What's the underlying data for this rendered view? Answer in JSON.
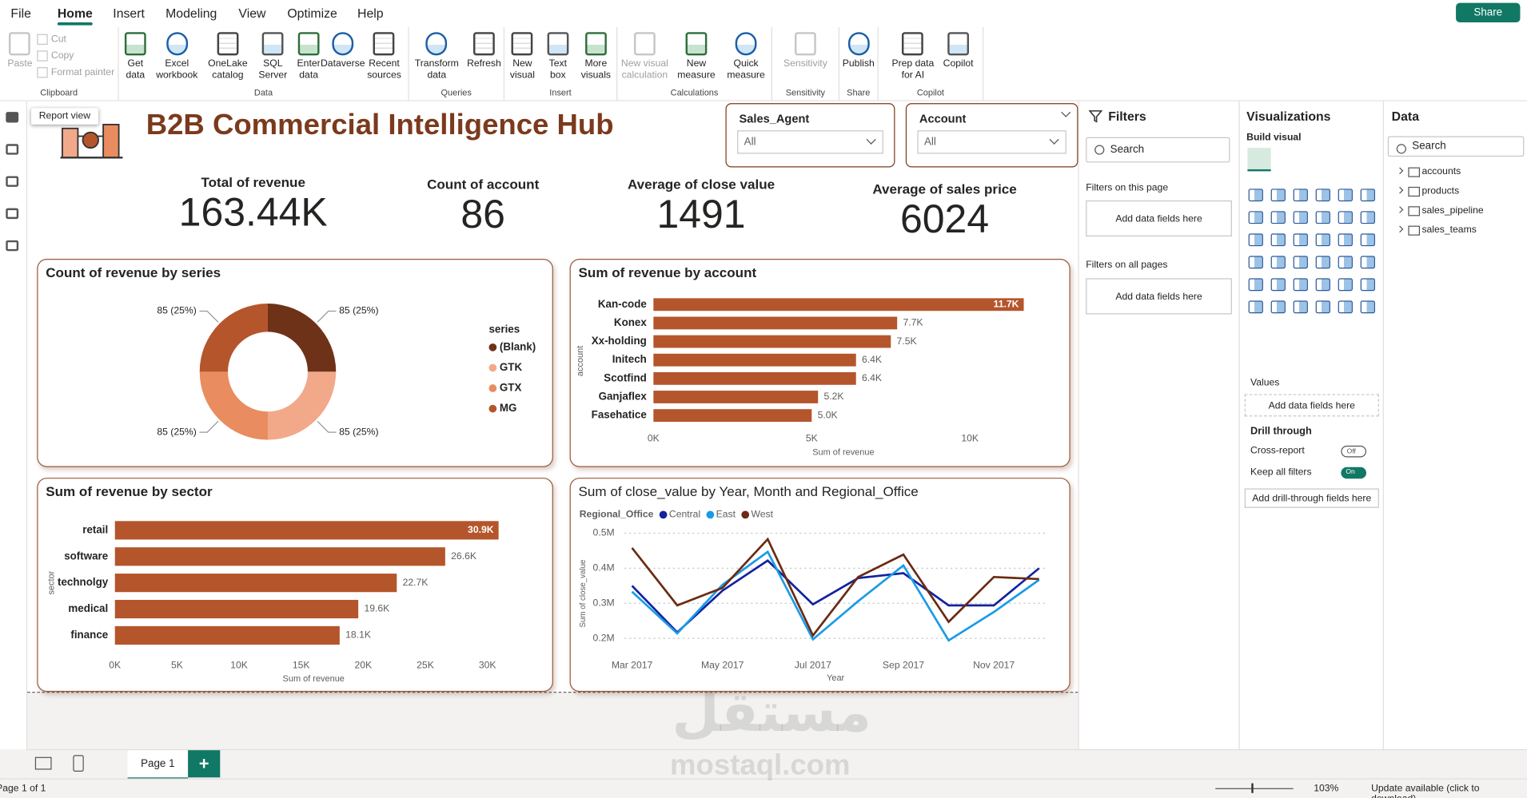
{
  "ribbon": {
    "tabs": [
      "File",
      "Home",
      "Insert",
      "Modeling",
      "View",
      "Optimize",
      "Help"
    ],
    "share": "Share",
    "groups": [
      {
        "label": "Clipboard",
        "buttons": [
          "Paste"
        ],
        "small": [
          "Cut",
          "Copy",
          "Format painter"
        ]
      },
      {
        "label": "Data",
        "buttons": [
          "Get data",
          "Excel workbook",
          "OneLake catalog",
          "SQL Server",
          "Enter data",
          "Dataverse",
          "Recent sources"
        ]
      },
      {
        "label": "Queries",
        "buttons": [
          "Transform data",
          "Refresh"
        ]
      },
      {
        "label": "Insert",
        "buttons": [
          "New visual",
          "Text box",
          "More visuals"
        ]
      },
      {
        "label": "Calculations",
        "buttons": [
          "New visual calculation",
          "New measure",
          "Quick measure"
        ]
      },
      {
        "label": "Sensitivity",
        "buttons": [
          "Sensitivity"
        ]
      },
      {
        "label": "Share",
        "buttons": [
          "Publish"
        ]
      },
      {
        "label": "Copilot",
        "buttons": [
          "Prep data for AI",
          "Copilot"
        ]
      }
    ]
  },
  "tooltip": "Report view",
  "report": {
    "title": "B2B Commercial Intelligence Hub",
    "slicers": [
      {
        "label": "Sales_Agent",
        "value": "All"
      },
      {
        "label": "Account",
        "value": "All"
      }
    ],
    "kpis": [
      {
        "label": "Total of revenue",
        "value": "163.44K"
      },
      {
        "label": "Count of account",
        "value": 86
      },
      {
        "label": "Average of close value",
        "value": 1491
      },
      {
        "label": "Average of sales price",
        "value": 6024
      }
    ]
  },
  "chart_data": [
    {
      "type": "pie",
      "donut": true,
      "title": "Count of revenue by series",
      "legend_title": "series",
      "categories": [
        "(Blank)",
        "GTK",
        "GTX",
        "MG"
      ],
      "values": [
        85,
        85,
        85,
        85
      ],
      "value_labels": [
        "85 (25%)",
        "85 (25%)",
        "85 (25%)",
        "85 (25%)"
      ],
      "colors": [
        "#6e3219",
        "#f2a98a",
        "#e98c5f",
        "#b5552b"
      ]
    },
    {
      "type": "bar",
      "orientation": "horizontal",
      "title": "Sum of revenue by account",
      "categories": [
        "Kan-code",
        "Konex",
        "Xx-holding",
        "Initech",
        "Scotfind",
        "Ganjaflex",
        "Fasehatice"
      ],
      "values": [
        11700,
        7700,
        7500,
        6400,
        6400,
        5200,
        5000
      ],
      "value_labels": [
        "11.7K",
        "7.7K",
        "7.5K",
        "6.4K",
        "6.4K",
        "5.2K",
        "5.0K"
      ],
      "color": "#b5552b",
      "xlim": [
        0,
        12000
      ],
      "xticks": [
        {
          "value": 0,
          "label": "0K"
        },
        {
          "value": 5000,
          "label": "5K"
        },
        {
          "value": 10000,
          "label": "10K"
        }
      ],
      "xlabel": "Sum of revenue",
      "ylabel": "account"
    },
    {
      "type": "bar",
      "orientation": "horizontal",
      "title": "Sum of revenue by sector",
      "categories": [
        "retail",
        "software",
        "technolgy",
        "medical",
        "finance"
      ],
      "values": [
        30900,
        26600,
        22700,
        19600,
        18100
      ],
      "value_labels": [
        "30.9K",
        "26.6K",
        "22.7K",
        "19.6K",
        "18.1K"
      ],
      "color": "#b5552b",
      "xlim": [
        0,
        32000
      ],
      "xticks": [
        {
          "value": 0,
          "label": "0K"
        },
        {
          "value": 5000,
          "label": "5K"
        },
        {
          "value": 10000,
          "label": "10K"
        },
        {
          "value": 15000,
          "label": "15K"
        },
        {
          "value": 20000,
          "label": "20K"
        },
        {
          "value": 25000,
          "label": "25K"
        },
        {
          "value": 30000,
          "label": "30K"
        }
      ],
      "xlabel": "Sum of revenue",
      "ylabel": "sector"
    },
    {
      "type": "line",
      "title": "Sum of close_value by Year, Month and Regional_Office",
      "legend_title": "Regional_Office",
      "x": [
        "2017-03",
        "2017-04",
        "2017-05",
        "2017-06",
        "2017-07",
        "2017-08",
        "2017-09",
        "2017-10",
        "2017-11",
        "2017-12"
      ],
      "xticks": [
        {
          "value": "2017-03",
          "label": "Mar 2017"
        },
        {
          "value": "2017-05",
          "label": "May 2017"
        },
        {
          "value": "2017-07",
          "label": "Jul 2017"
        },
        {
          "value": "2017-09",
          "label": "Sep 2017"
        },
        {
          "value": "2017-11",
          "label": "Nov 2017"
        }
      ],
      "ylim": [
        150000,
        520000
      ],
      "yticks": [
        {
          "value": 200000,
          "label": "0.2M"
        },
        {
          "value": 300000,
          "label": "0.3M"
        },
        {
          "value": 400000,
          "label": "0.4M"
        },
        {
          "value": 500000,
          "label": "0.5M"
        }
      ],
      "grid": true,
      "xlabel": "Year",
      "ylabel": "Sum of close_value",
      "series": [
        {
          "name": "Central",
          "color": "#12239e",
          "values": [
            350000,
            217000,
            336000,
            422000,
            297000,
            372000,
            386000,
            294000,
            294000,
            400000
          ]
        },
        {
          "name": "East",
          "color": "#1a9be8",
          "values": [
            333000,
            214000,
            353000,
            447000,
            197000,
            306000,
            408000,
            194000,
            275000,
            367000
          ]
        },
        {
          "name": "West",
          "color": "#6b2a12",
          "values": [
            458000,
            294000,
            344000,
            483000,
            208000,
            375000,
            439000,
            247000,
            375000,
            369000
          ]
        }
      ]
    }
  ],
  "filters": {
    "title": "Filters",
    "search": "Search",
    "sections": [
      {
        "label": "Filters on this page",
        "placeholder": "Add data fields here"
      },
      {
        "label": "Filters on all pages",
        "placeholder": "Add data fields here"
      }
    ]
  },
  "visualizations": {
    "title": "Visualizations",
    "build": "Build visual",
    "values_label": "Values",
    "values_placeholder": "Add data fields here",
    "drill_title": "Drill through",
    "cross_report": "Cross-report",
    "cross_state": "Off",
    "keep_filters": "Keep all filters",
    "keep_state": "On",
    "drill_placeholder": "Add drill-through fields here"
  },
  "data_pane": {
    "title": "Data",
    "search": "Search",
    "tables": [
      "accounts",
      "products",
      "sales_pipeline",
      "sales_teams"
    ]
  },
  "pages": {
    "tabs": [
      "Page 1"
    ],
    "add": "+"
  },
  "status": {
    "page": "Page 1 of 1",
    "zoom": "103%",
    "update": "Update available (click to download)"
  },
  "watermark": {
    "arabic": "مستقل",
    "latin": "mostaql.com"
  }
}
